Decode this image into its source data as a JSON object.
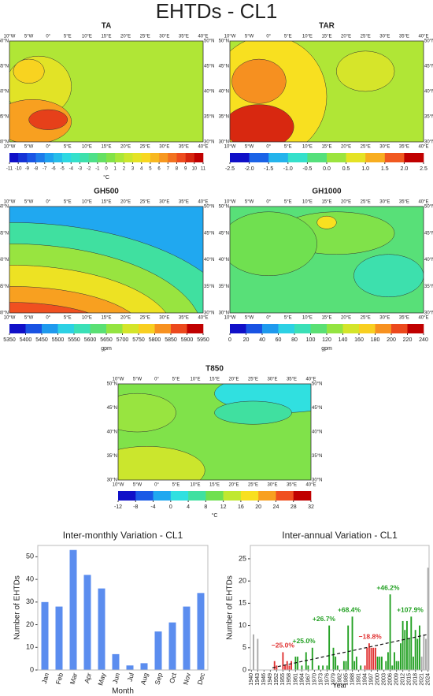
{
  "title": "EHTDs - CL1",
  "map_lon_labels": [
    "10°W",
    "5°W",
    "0°",
    "5°E",
    "10°E",
    "15°E",
    "20°E",
    "25°E",
    "30°E",
    "35°E",
    "40°E"
  ],
  "map_lat_labels": [
    "30°N",
    "35°N",
    "40°N",
    "45°N",
    "50°N"
  ],
  "colorbar_stops": [
    "#1010c8",
    "#1a5ae6",
    "#20a8f0",
    "#30e0e0",
    "#40e0a0",
    "#70e050",
    "#c0e830",
    "#f8e020",
    "#f8a020",
    "#f05020",
    "#c00000"
  ],
  "maps": [
    {
      "title": "TA",
      "colorbar": {
        "ticks": [
          -11,
          -10,
          -9,
          -8,
          -7,
          -6,
          -5,
          -4,
          -3,
          -2,
          -1,
          0,
          1,
          2,
          3,
          4,
          5,
          6,
          7,
          8,
          9,
          10,
          11
        ],
        "unit": "°C"
      }
    },
    {
      "title": "TAR",
      "colorbar": {
        "ticks": [
          -2.5,
          {
            "value": -2,
            "label": "-2.0"
          },
          -1.5,
          {
            "value": -1,
            "label": "-1.0"
          },
          -0.5,
          {
            "value": 0,
            "label": "0.0"
          },
          0.5,
          {
            "value": 1,
            "label": "1.0"
          },
          1.5,
          {
            "value": 2,
            "label": "2.0"
          },
          2.5
        ]
      }
    },
    {
      "title": "GH500",
      "colorbar": {
        "ticks": [
          5350,
          5400,
          5450,
          5500,
          5550,
          5600,
          5650,
          5700,
          5750,
          5800,
          5850,
          5900,
          5950
        ],
        "unit": "gpm"
      }
    },
    {
      "title": "GH1000",
      "colorbar": {
        "ticks": [
          0,
          20,
          40,
          60,
          80,
          100,
          120,
          140,
          160,
          180,
          200,
          220,
          240
        ],
        "unit": "gpm"
      }
    },
    {
      "title": "T850",
      "colorbar": {
        "ticks": [
          -12,
          -8,
          -4,
          0,
          4,
          8,
          12,
          16,
          20,
          24,
          28,
          32
        ],
        "unit": "°C"
      }
    }
  ],
  "chart_data": [
    {
      "type": "bar",
      "title": "Inter-monthly Variation - CL1",
      "xlabel": "Month",
      "ylabel": "Number of EHTDs",
      "color": "#5b8def",
      "categories": [
        "Jan",
        "Feb",
        "Mar",
        "Apr",
        "May",
        "Jun",
        "Jul",
        "Aug",
        "Sep",
        "Oct",
        "Nov",
        "Dec"
      ],
      "values": [
        30,
        28,
        53,
        42,
        36,
        7,
        2,
        3,
        17,
        21,
        28,
        34
      ],
      "ylim": [
        0,
        55
      ],
      "yticks": [
        0,
        10,
        20,
        30,
        40,
        50
      ]
    },
    {
      "type": "bar",
      "title": "Inter-annual Variation - CL1",
      "xlabel": "Year",
      "ylabel": "Number of EHTDs",
      "x": [
        1940,
        1941,
        1942,
        1943,
        1944,
        1945,
        1946,
        1947,
        1948,
        1949,
        1950,
        1951,
        1952,
        1953,
        1954,
        1955,
        1956,
        1957,
        1958,
        1959,
        1960,
        1961,
        1962,
        1963,
        1964,
        1965,
        1966,
        1967,
        1968,
        1969,
        1970,
        1971,
        1972,
        1973,
        1974,
        1975,
        1976,
        1977,
        1978,
        1979,
        1980,
        1981,
        1982,
        1983,
        1984,
        1985,
        1986,
        1987,
        1988,
        1989,
        1990,
        1991,
        1992,
        1993,
        1994,
        1995,
        1996,
        1997,
        1998,
        1999,
        2000,
        2001,
        2002,
        2003,
        2004,
        2005,
        2006,
        2007,
        2008,
        2009,
        2010,
        2011,
        2012,
        2013,
        2014,
        2015,
        2016,
        2017,
        2018,
        2019,
        2020,
        2021,
        2022,
        2023,
        2024
      ],
      "values": [
        0,
        8,
        0,
        7,
        0,
        0,
        0,
        0,
        0,
        0,
        0,
        2,
        1,
        0,
        0,
        4,
        1,
        2,
        1,
        2,
        0,
        3,
        3,
        0,
        1,
        0,
        4,
        1,
        0,
        5,
        0,
        0,
        1,
        0,
        1,
        0,
        1,
        10,
        0,
        5,
        3,
        1,
        0,
        0,
        2,
        2,
        10,
        0,
        12,
        2,
        3,
        0,
        1,
        0,
        1,
        5,
        6,
        5,
        5,
        5,
        3,
        3,
        3,
        0,
        2,
        4,
        17,
        1,
        4,
        2,
        2,
        6,
        11,
        9,
        11,
        7,
        12,
        3,
        9,
        7,
        10,
        3,
        8,
        7,
        23
      ],
      "periods": [
        {
          "from": 1940,
          "to": 1949,
          "color": "#a8a8a8"
        },
        {
          "from": 1950,
          "to": 1960,
          "color": "#e03030",
          "annotation": "−25.0%"
        },
        {
          "from": 1961,
          "to": 1969,
          "color": "#22a022",
          "annotation": "+25.0%"
        },
        {
          "from": 1970,
          "to": 1979,
          "color": "#22a022",
          "annotation": "+26.7%"
        },
        {
          "from": 1980,
          "to": 1993,
          "color": "#22a022",
          "annotation": "+68.4%"
        },
        {
          "from": 1994,
          "to": 1999,
          "color": "#e03030",
          "annotation": "−18.8%"
        },
        {
          "from": 2000,
          "to": 2010,
          "color": "#22a022",
          "annotation": "+46.2%"
        },
        {
          "from": 2011,
          "to": 2020,
          "color": "#22a022",
          "annotation": "+107.9%"
        },
        {
          "from": 2021,
          "to": 2024,
          "color": "#a8a8a8"
        }
      ],
      "trend": {
        "x": [
          1950,
          2024
        ],
        "values": [
          0.5,
          8
        ]
      },
      "xlim": [
        1939.5,
        2024.5
      ],
      "xticks": [
        1940,
        1943,
        1946,
        1949,
        1952,
        1955,
        1958,
        1961,
        1964,
        1967,
        1970,
        1973,
        1976,
        1979,
        1982,
        1985,
        1988,
        1991,
        1994,
        1997,
        2000,
        2003,
        2006,
        2009,
        2012,
        2015,
        2018,
        2021,
        2024
      ],
      "ylim": [
        0,
        28
      ],
      "yticks": [
        0,
        5,
        10,
        15,
        20,
        25
      ]
    }
  ]
}
